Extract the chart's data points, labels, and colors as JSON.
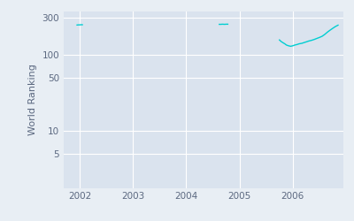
{
  "title": "",
  "ylabel": "World Ranking",
  "line_color": "#00CED1",
  "bg_color": "#E8EEF4",
  "plot_bg_color": "#DAE3EE",
  "grid_color": "#FFFFFF",
  "tick_color": "#5B6880",
  "segments": [
    {
      "dates_approx": [
        2001.95,
        2001.97,
        2002.0,
        2002.02,
        2002.05
      ],
      "values": [
        243,
        244,
        244,
        245,
        245
      ]
    },
    {
      "dates_approx": [
        2004.62,
        2004.65,
        2004.68,
        2004.72,
        2004.75,
        2004.78
      ],
      "values": [
        248,
        248,
        249,
        248,
        249,
        249
      ]
    },
    {
      "dates_approx": [
        2005.75,
        2005.78,
        2005.82,
        2005.85,
        2005.88,
        2005.92,
        2005.96,
        2006.0,
        2006.04,
        2006.08,
        2006.12,
        2006.17,
        2006.21,
        2006.25,
        2006.3,
        2006.35,
        2006.4,
        2006.45,
        2006.5,
        2006.55,
        2006.6,
        2006.65,
        2006.7,
        2006.75,
        2006.8,
        2006.85
      ],
      "values": [
        155,
        148,
        142,
        138,
        133,
        130,
        128,
        130,
        133,
        135,
        138,
        140,
        143,
        146,
        150,
        153,
        157,
        162,
        167,
        173,
        183,
        196,
        208,
        220,
        232,
        242
      ]
    }
  ],
  "yticks": [
    5,
    10,
    50,
    100,
    300
  ],
  "xtick_years": [
    2002,
    2003,
    2004,
    2005,
    2006
  ],
  "xlim": [
    2001.7,
    2006.95
  ],
  "ylim_log": [
    1.8,
    370
  ]
}
